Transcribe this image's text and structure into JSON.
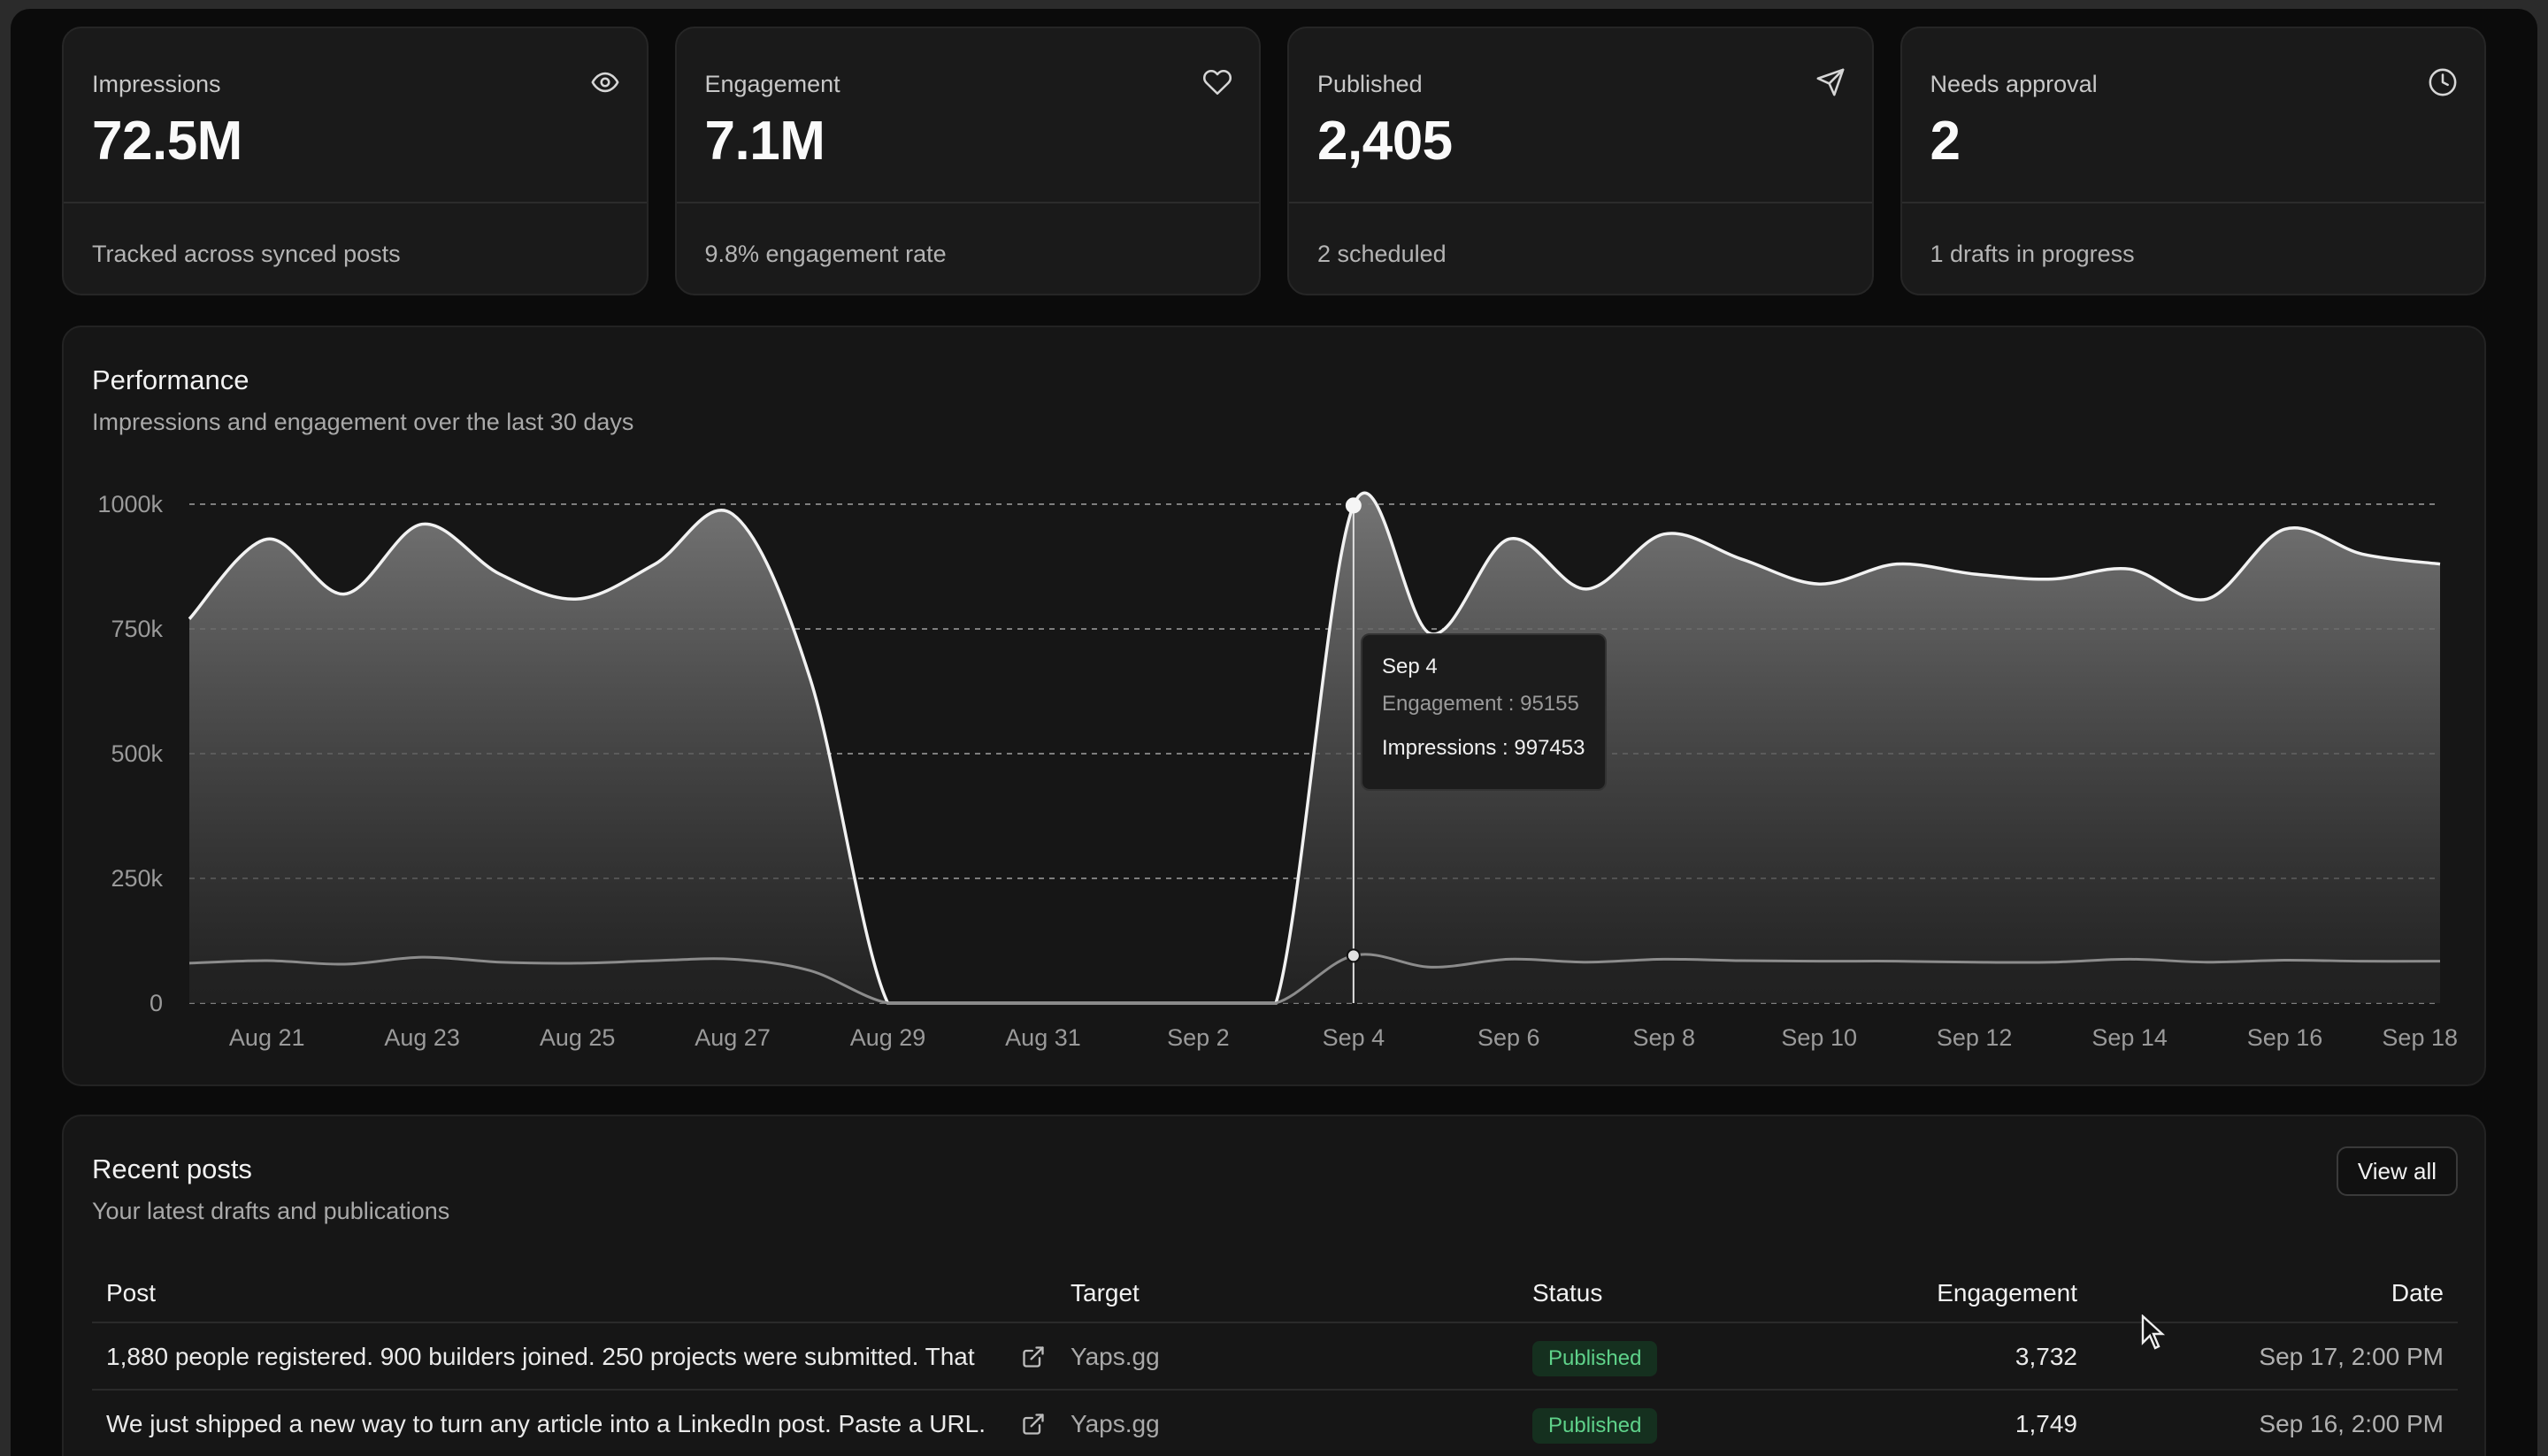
{
  "stats": [
    {
      "label": "Impressions",
      "value": "72.5M",
      "sub": "Tracked across synced posts",
      "icon": "eye-icon"
    },
    {
      "label": "Engagement",
      "value": "7.1M",
      "sub": "9.8% engagement rate",
      "icon": "heart-icon"
    },
    {
      "label": "Published",
      "value": "2,405",
      "sub": "2 scheduled",
      "icon": "send-icon"
    },
    {
      "label": "Needs approval",
      "value": "2",
      "sub": "1 drafts in progress",
      "icon": "clock-icon"
    }
  ],
  "performance": {
    "title": "Performance",
    "subtitle": "Impressions and engagement over the last 30 days",
    "tooltip": {
      "date": "Sep 4",
      "engagement": "Engagement : 95155",
      "impressions": "Impressions : 997453"
    }
  },
  "chart_data": {
    "type": "area",
    "x": [
      "Aug 20",
      "Aug 21",
      "Aug 22",
      "Aug 23",
      "Aug 24",
      "Aug 25",
      "Aug 26",
      "Aug 27",
      "Aug 28",
      "Aug 29",
      "Aug 30",
      "Aug 31",
      "Sep 1",
      "Sep 2",
      "Sep 3",
      "Sep 4",
      "Sep 5",
      "Sep 6",
      "Sep 7",
      "Sep 8",
      "Sep 9",
      "Sep 10",
      "Sep 11",
      "Sep 12",
      "Sep 13",
      "Sep 14",
      "Sep 15",
      "Sep 16",
      "Sep 17",
      "Sep 18"
    ],
    "x_tick_labels": [
      "Aug 21",
      "Aug 23",
      "Aug 25",
      "Aug 27",
      "Aug 29",
      "Aug 31",
      "Sep 2",
      "Sep 4",
      "Sep 6",
      "Sep 8",
      "Sep 10",
      "Sep 12",
      "Sep 14",
      "Sep 16",
      "Sep 18"
    ],
    "y_tick_labels": [
      "0",
      "250k",
      "500k",
      "750k",
      "1000k"
    ],
    "ylim": [
      0,
      1000000
    ],
    "series": [
      {
        "name": "Impressions",
        "values": [
          770000,
          930000,
          820000,
          960000,
          860000,
          810000,
          880000,
          980000,
          650000,
          0,
          0,
          0,
          0,
          0,
          0,
          997453,
          740000,
          930000,
          830000,
          940000,
          890000,
          840000,
          880000,
          860000,
          850000,
          870000,
          810000,
          950000,
          900000,
          880000
        ]
      },
      {
        "name": "Engagement",
        "values": [
          80000,
          85000,
          78000,
          92000,
          82000,
          80000,
          85000,
          88000,
          65000,
          0,
          0,
          0,
          0,
          0,
          0,
          95155,
          72000,
          88000,
          82000,
          88000,
          85000,
          84000,
          84000,
          82000,
          82000,
          88000,
          82000,
          86000,
          84000,
          84000
        ]
      }
    ],
    "highlight_index": 15,
    "grid": true
  },
  "recent": {
    "title": "Recent posts",
    "subtitle": "Your latest drafts and publications",
    "view_all": "View all",
    "headers": {
      "post": "Post",
      "target": "Target",
      "status": "Status",
      "engagement": "Engagement",
      "date": "Date"
    },
    "rows": [
      {
        "post": "1,880 people registered. 900 builders joined. 250 projects were submitted. That",
        "target": "Yaps.gg",
        "status": "Published",
        "engagement": "3,732",
        "date": "Sep 17, 2:00 PM"
      },
      {
        "post": "We just shipped a new way to turn any article into a LinkedIn post. Paste a URL.",
        "target": "Yaps.gg",
        "status": "Published",
        "engagement": "1,749",
        "date": "Sep 16, 2:00 PM"
      }
    ]
  },
  "colors": {
    "background": "#0b0b0b",
    "card": "#1a1a1a",
    "badge_bg": "#15301f",
    "badge_fg": "#5fd28a"
  }
}
